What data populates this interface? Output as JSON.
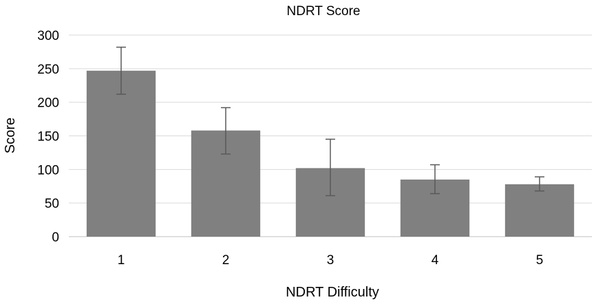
{
  "chart_data": {
    "type": "bar",
    "title": "NDRT Score",
    "xlabel": "NDRT Difficulty",
    "ylabel": "Score",
    "categories": [
      "1",
      "2",
      "3",
      "4",
      "5"
    ],
    "values": [
      247,
      158,
      102,
      85,
      78
    ],
    "error_low": [
      212,
      123,
      61,
      64,
      68
    ],
    "error_high": [
      282,
      192,
      145,
      107,
      89
    ],
    "ylim": [
      0,
      300
    ],
    "yticks": [
      "0",
      "50",
      "100",
      "150",
      "200",
      "250",
      "300"
    ],
    "grid": true,
    "colors": {
      "bar": "#808080",
      "error": "#595959",
      "grid": "#d9d9d9"
    }
  }
}
